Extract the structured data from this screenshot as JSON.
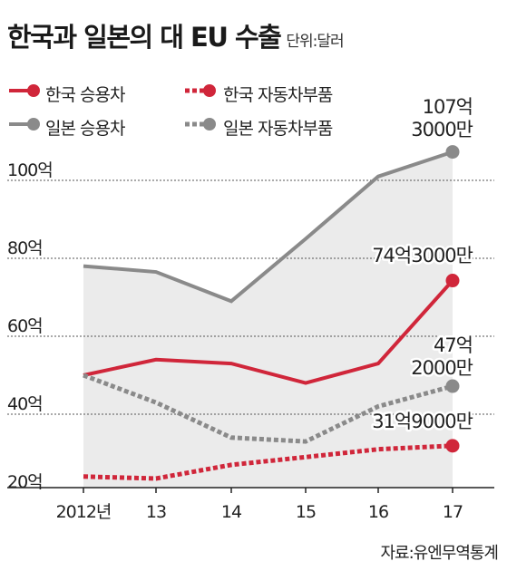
{
  "title": "한국과 일본의 대 EU 수출",
  "unit": "단위:달러",
  "source": "자료:유엔무역통계",
  "colors": {
    "red": "#d0263a",
    "gray": "#8a8a8a",
    "fill": "#ebebeb",
    "grid": "#555555"
  },
  "legend": [
    {
      "label": "한국 승용차",
      "color": "#d0263a",
      "dashed": false
    },
    {
      "label": "한국 자동차부품",
      "color": "#d0263a",
      "dashed": true
    },
    {
      "label": "일본 승용차",
      "color": "#8a8a8a",
      "dashed": false
    },
    {
      "label": "일본 자동차부품",
      "color": "#8a8a8a",
      "dashed": true
    }
  ],
  "chart_data": {
    "type": "line",
    "title": "한국과 일본의 대 EU 수출",
    "x": [
      "2012년",
      "13",
      "14",
      "15",
      "16",
      "17"
    ],
    "ylim": [
      20,
      110
    ],
    "yticks": [
      20,
      40,
      60,
      80,
      100
    ],
    "ytick_labels": [
      "20억",
      "40억",
      "60억",
      "80억",
      "100억"
    ],
    "grid": true,
    "series": [
      {
        "name": "일본 승용차",
        "color": "#8a8a8a",
        "dashed": false,
        "fill": true,
        "values": [
          78,
          76.5,
          69,
          85,
          101,
          107.3
        ],
        "end_label": [
          "107억",
          "3000만"
        ]
      },
      {
        "name": "한국 승용차",
        "color": "#d0263a",
        "dashed": false,
        "fill": false,
        "values": [
          50,
          54,
          53,
          48,
          53,
          74.3
        ],
        "end_label": [
          "74억3000만"
        ]
      },
      {
        "name": "일본 자동차부품",
        "color": "#8a8a8a",
        "dashed": true,
        "fill": false,
        "values": [
          50,
          43,
          34,
          33,
          42,
          47.2
        ],
        "end_label": [
          "47억",
          "2000만"
        ]
      },
      {
        "name": "한국 자동차부품",
        "color": "#d0263a",
        "dashed": true,
        "fill": false,
        "values": [
          24,
          23.5,
          27,
          29,
          31,
          31.9
        ],
        "end_label": [
          "31억9000만"
        ]
      }
    ]
  }
}
